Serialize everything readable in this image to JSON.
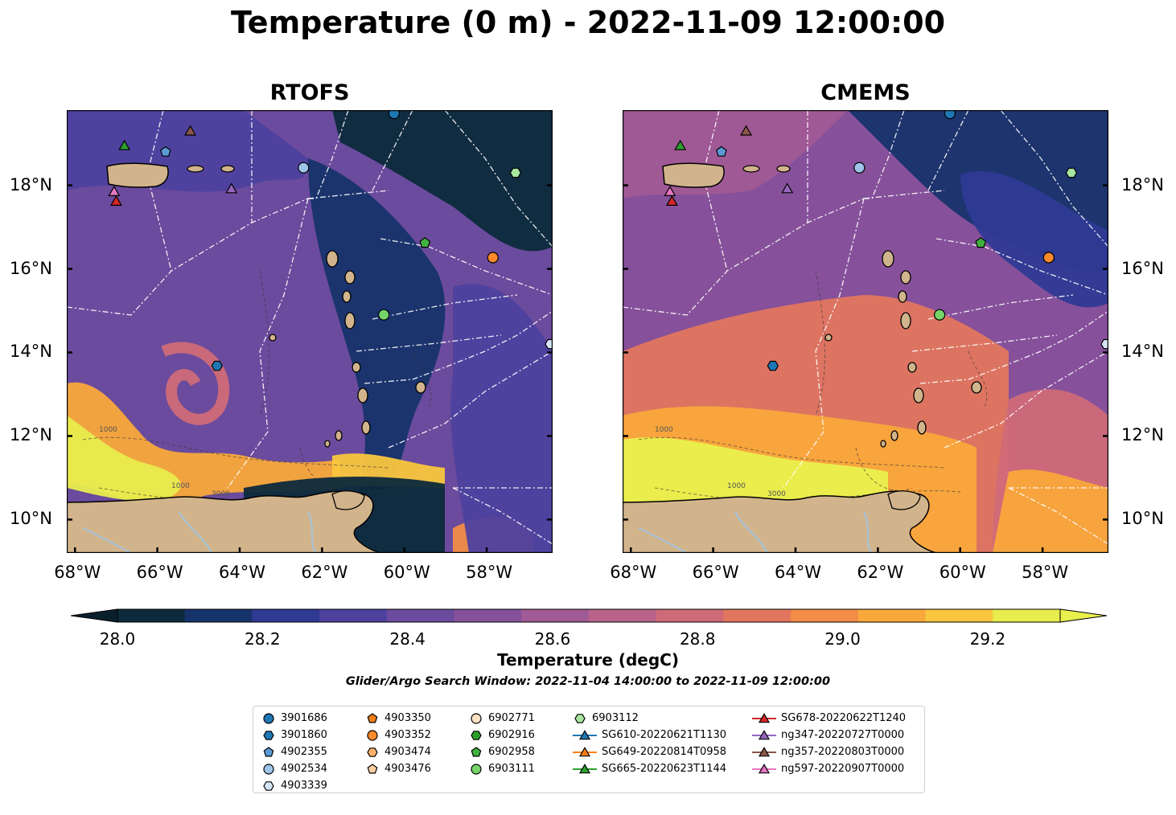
{
  "figure": {
    "title": "Temperature (0 m) - 2022-11-09 12:00:00",
    "panels": [
      {
        "title": "RTOFS",
        "variant": "rtofs"
      },
      {
        "title": "CMEMS",
        "variant": "cmems"
      }
    ],
    "lon_labels": [
      "68°W",
      "66°W",
      "64°W",
      "62°W",
      "60°W",
      "58°W"
    ],
    "lat_labels": [
      "18°N",
      "16°N",
      "14°N",
      "12°N",
      "10°N"
    ],
    "lon_range": [
      -68.2,
      -56.4
    ],
    "lat_range": [
      9.2,
      19.8
    ],
    "contour_labels": [
      "1000",
      "1000",
      "3000"
    ]
  },
  "colorbar": {
    "label": "Temperature (degC)",
    "ticks": [
      "28.0",
      "28.2",
      "28.4",
      "28.6",
      "28.8",
      "29.0",
      "29.2"
    ],
    "range": [
      28.0,
      29.3
    ],
    "colors": [
      "#0c2a3c",
      "#17336b",
      "#2f3a93",
      "#4e419f",
      "#6b4b9d",
      "#86519a",
      "#a05a95",
      "#b9638b",
      "#cf6a78",
      "#e2765f",
      "#f28c46",
      "#f9a83b",
      "#f9c63e",
      "#e8ec4e"
    ],
    "under_color": "#0a1f2c",
    "over_color": "#e9f04d"
  },
  "search_window": "Glider/Argo Search Window: 2022-11-04 14:00:00 to 2022-11-09 12:00:00",
  "legend": {
    "columns": [
      [
        {
          "label": "3901686",
          "shape": "circle",
          "color": "#1f77b4"
        },
        {
          "label": "3901860",
          "shape": "hexagon",
          "color": "#1f77b4"
        },
        {
          "label": "4902355",
          "shape": "pentagon",
          "color": "#5b9bd5"
        },
        {
          "label": "4902534",
          "shape": "circle",
          "color": "#9ec4ea"
        },
        {
          "label": "4903339",
          "shape": "hexagon",
          "color": "#d6e6f7"
        }
      ],
      [
        {
          "label": "4903350",
          "shape": "pentagon",
          "color": "#f07e16"
        },
        {
          "label": "4903352",
          "shape": "circle",
          "color": "#fd8a2a"
        },
        {
          "label": "4903474",
          "shape": "hexagon",
          "color": "#fdae6b"
        },
        {
          "label": "4903476",
          "shape": "pentagon",
          "color": "#fdd0a2"
        }
      ],
      [
        {
          "label": "6902771",
          "shape": "circle",
          "color": "#fde1c4"
        },
        {
          "label": "6902916",
          "shape": "hexagon",
          "color": "#2ca02c"
        },
        {
          "label": "6902958",
          "shape": "pentagon",
          "color": "#3fb13f"
        },
        {
          "label": "6903111",
          "shape": "circle",
          "color": "#74d46a"
        }
      ],
      [
        {
          "label": "6903112",
          "shape": "hexagon",
          "color": "#a8e6a0"
        },
        {
          "label": "SG610-20220621T1130",
          "shape": "triangle",
          "color": "#1f77b4",
          "line": true
        },
        {
          "label": "SG649-20220814T0958",
          "shape": "triangle",
          "color": "#ff7f0e",
          "line": true
        },
        {
          "label": "SG665-20220623T1144",
          "shape": "triangle",
          "color": "#2ca02c",
          "line": true
        }
      ],
      [
        {
          "label": "SG678-20220622T1240",
          "shape": "triangle",
          "color": "#d62728",
          "line": true
        },
        {
          "label": "ng347-20220727T0000",
          "shape": "triangle",
          "color": "#9467bd",
          "line": true
        },
        {
          "label": "ng357-20220803T0000",
          "shape": "triangle",
          "color": "#8c564b",
          "line": true
        },
        {
          "label": "ng597-20220907T0000",
          "shape": "triangle",
          "color": "#e377c2",
          "line": true
        }
      ]
    ]
  },
  "markers": [
    {
      "id": "3901686",
      "lon": -60.25,
      "lat": 19.72,
      "shape": "circle",
      "color": "#1f77b4"
    },
    {
      "id": "3901860",
      "lon": -64.55,
      "lat": 13.68,
      "shape": "hexagon",
      "color": "#1f77b4"
    },
    {
      "id": "4902355",
      "lon": -65.8,
      "lat": 18.8,
      "shape": "pentagon",
      "color": "#5b9bd5"
    },
    {
      "id": "4902534",
      "lon": -62.45,
      "lat": 18.42,
      "shape": "circle",
      "color": "#9ec4ea"
    },
    {
      "id": "4903339",
      "lon": -56.45,
      "lat": 14.2,
      "shape": "hexagon",
      "color": "#d6e6f7"
    },
    {
      "id": "4903352",
      "lon": -57.85,
      "lat": 16.27,
      "shape": "circle",
      "color": "#fd8a2a"
    },
    {
      "id": "6902958",
      "lon": -59.5,
      "lat": 16.62,
      "shape": "pentagon",
      "color": "#3fb13f"
    },
    {
      "id": "6903111",
      "lon": -60.5,
      "lat": 14.9,
      "shape": "circle",
      "color": "#74d46a"
    },
    {
      "id": "6903112",
      "lon": -57.3,
      "lat": 18.3,
      "shape": "hexagon",
      "color": "#a8e6a0"
    },
    {
      "id": "SG665-20220623T1144",
      "lon": -66.8,
      "lat": 18.95,
      "shape": "triangle",
      "color": "#2ca02c"
    },
    {
      "id": "ng357-20220803T0000",
      "lon": -65.2,
      "lat": 19.3,
      "shape": "triangle",
      "color": "#8c564b"
    },
    {
      "id": "ng347-20220727T0000",
      "lon": -64.2,
      "lat": 17.92,
      "shape": "triangle",
      "color": "#9467bd"
    },
    {
      "id": "ng597-20220907T0000",
      "lon": -67.05,
      "lat": 17.85,
      "shape": "triangle",
      "color": "#e377c2"
    },
    {
      "id": "SG678-20220622T1240",
      "lon": -67.0,
      "lat": 17.62,
      "shape": "triangle",
      "color": "#d62728"
    }
  ],
  "map_colors": {
    "land": "#d2b48c",
    "coast": "#000000",
    "river": "#a4c4dc",
    "eez": "#ffffff"
  }
}
